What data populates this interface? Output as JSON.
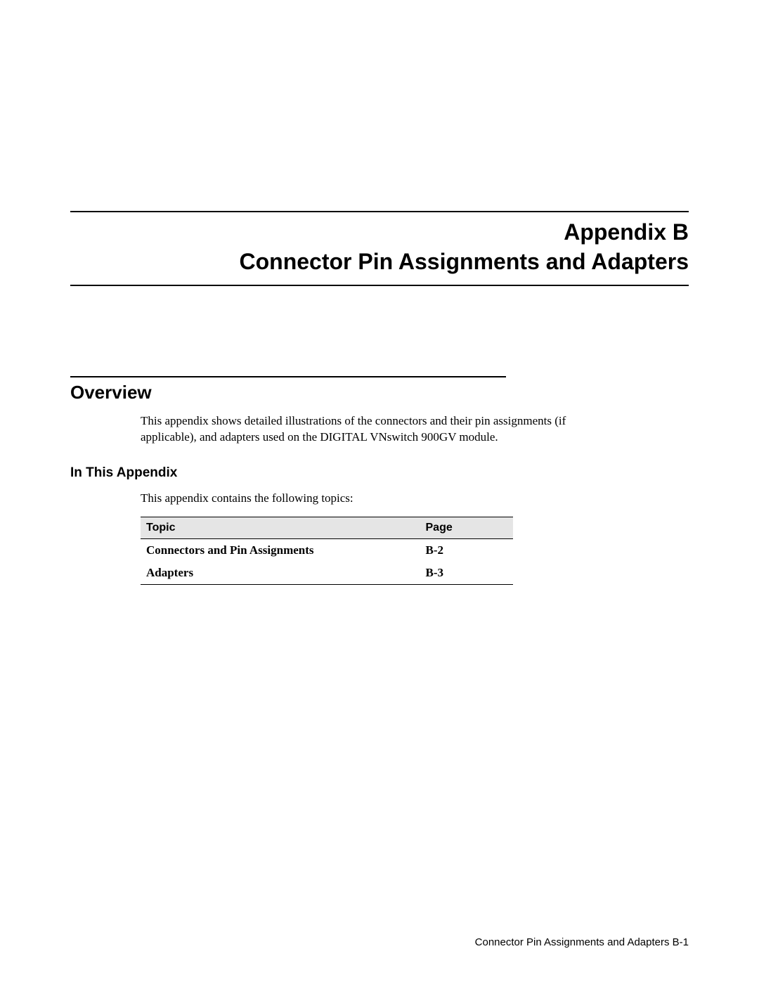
{
  "title_block": {
    "label": "Appendix B",
    "title": "Connector Pin Assignments and Adapters"
  },
  "overview": {
    "heading": "Overview",
    "body": "This appendix shows detailed illustrations of the connectors and their pin assignments (if applicable), and adapters used on the DIGITAL VNswitch 900GV module."
  },
  "in_this_appendix": {
    "heading": "In This Appendix",
    "intro": "This appendix contains the following topics:"
  },
  "toc": {
    "columns": {
      "topic": "Topic",
      "page": "Page"
    },
    "rows": [
      {
        "topic": "Connectors and Pin Assignments",
        "page": "B-2"
      },
      {
        "topic": "Adapters",
        "page": "B-3"
      }
    ],
    "styling": {
      "header_bg": "#e5e5e5",
      "border_color": "#000000",
      "header_font": "Arial",
      "body_font": "Times New Roman",
      "body_weight": "bold"
    }
  },
  "footer": {
    "text": "Connector Pin Assignments and Adapters B-1"
  }
}
